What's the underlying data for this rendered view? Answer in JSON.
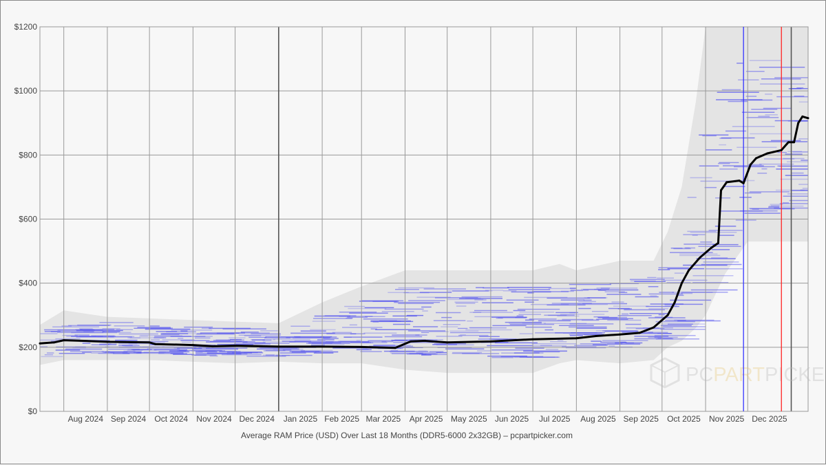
{
  "chart_data": {
    "type": "line",
    "title": "Average RAM Price (USD) Over Last 18 Months (DDR5-6000 2x32GB) – pcpartpicker.com",
    "xlabel": "",
    "ylabel": "",
    "xlim": [
      "2024-07-15",
      "2026-01-13"
    ],
    "ylim": [
      0,
      1200
    ],
    "grid": true,
    "legend": "none",
    "y_ticks": [
      {
        "value": 0,
        "label": "$0"
      },
      {
        "value": 200,
        "label": "$200"
      },
      {
        "value": 400,
        "label": "$400"
      },
      {
        "value": 600,
        "label": "$600"
      },
      {
        "value": 800,
        "label": "$800"
      },
      {
        "value": 1000,
        "label": "$1000"
      },
      {
        "value": 1200,
        "label": "$1200"
      }
    ],
    "x_ticks": [
      {
        "date": "2024-08-01",
        "label": "Aug 2024"
      },
      {
        "date": "2024-09-01",
        "label": "Sep 2024"
      },
      {
        "date": "2024-10-01",
        "label": "Oct 2024"
      },
      {
        "date": "2024-11-01",
        "label": "Nov 2024"
      },
      {
        "date": "2024-12-01",
        "label": "Dec 2024"
      },
      {
        "date": "2025-01-01",
        "label": "Jan 2025"
      },
      {
        "date": "2025-02-01",
        "label": "Feb 2025"
      },
      {
        "date": "2025-03-01",
        "label": "Mar 2025"
      },
      {
        "date": "2025-04-01",
        "label": "Apr 2025"
      },
      {
        "date": "2025-05-01",
        "label": "May 2025"
      },
      {
        "date": "2025-06-01",
        "label": "Jun 2025"
      },
      {
        "date": "2025-07-01",
        "label": "Jul 2025"
      },
      {
        "date": "2025-08-01",
        "label": "Aug 2025"
      },
      {
        "date": "2025-09-01",
        "label": "Sep 2025"
      },
      {
        "date": "2025-10-01",
        "label": "Oct 2025"
      },
      {
        "date": "2025-11-01",
        "label": "Nov 2025"
      },
      {
        "date": "2025-12-01",
        "label": "Dec 2025"
      },
      {
        "date": "2026-01-01",
        "label": ""
      }
    ],
    "year_markers": [
      "2025-01-01",
      "2026-01-01"
    ],
    "event_lines": [
      {
        "date": "2025-11-28",
        "color": "#3333ff"
      },
      {
        "date": "2025-12-25",
        "color": "#ff2222"
      }
    ],
    "series": [
      {
        "color": "#000000",
        "points": [
          [
            "2024-07-15",
            212
          ],
          [
            "2024-07-25",
            215
          ],
          [
            "2024-08-01",
            222
          ],
          [
            "2024-08-15",
            220
          ],
          [
            "2024-09-01",
            217
          ],
          [
            "2024-10-01",
            215
          ],
          [
            "2024-10-05",
            210
          ],
          [
            "2024-11-01",
            207
          ],
          [
            "2024-11-15",
            203
          ],
          [
            "2024-12-01",
            205
          ],
          [
            "2025-01-01",
            202
          ],
          [
            "2025-02-01",
            202
          ],
          [
            "2025-03-01",
            201
          ],
          [
            "2025-03-25",
            198
          ],
          [
            "2025-04-05",
            218
          ],
          [
            "2025-04-15",
            220
          ],
          [
            "2025-05-01",
            215
          ],
          [
            "2025-06-01",
            218
          ],
          [
            "2025-07-01",
            225
          ],
          [
            "2025-08-01",
            228
          ],
          [
            "2025-08-15",
            235
          ],
          [
            "2025-09-01",
            240
          ],
          [
            "2025-09-15",
            245
          ],
          [
            "2025-09-25",
            262
          ],
          [
            "2025-10-05",
            300
          ],
          [
            "2025-10-10",
            340
          ],
          [
            "2025-10-15",
            400
          ],
          [
            "2025-10-20",
            440
          ],
          [
            "2025-10-28",
            480
          ],
          [
            "2025-11-05",
            510
          ],
          [
            "2025-11-10",
            525
          ],
          [
            "2025-11-12",
            690
          ],
          [
            "2025-11-16",
            715
          ],
          [
            "2025-11-25",
            720
          ],
          [
            "2025-11-28",
            712
          ],
          [
            "2025-12-03",
            770
          ],
          [
            "2025-12-07",
            790
          ],
          [
            "2025-12-15",
            805
          ],
          [
            "2025-12-25",
            815
          ],
          [
            "2025-12-30",
            840
          ],
          [
            "2026-01-03",
            840
          ],
          [
            "2026-01-06",
            900
          ],
          [
            "2026-01-09",
            920
          ],
          [
            "2026-01-13",
            915
          ]
        ]
      }
    ],
    "price_range": {
      "color": "#e4e4e4",
      "points": [
        [
          "2024-07-15",
          145,
          270
        ],
        [
          "2024-08-01",
          160,
          315
        ],
        [
          "2024-09-01",
          160,
          295
        ],
        [
          "2024-10-01",
          160,
          290
        ],
        [
          "2024-12-01",
          150,
          280
        ],
        [
          "2025-01-01",
          155,
          275
        ],
        [
          "2025-02-01",
          150,
          340
        ],
        [
          "2025-03-01",
          150,
          390
        ],
        [
          "2025-04-01",
          130,
          440
        ],
        [
          "2025-05-01",
          120,
          440
        ],
        [
          "2025-07-01",
          120,
          440
        ],
        [
          "2025-07-20",
          150,
          460
        ],
        [
          "2025-08-01",
          160,
          440
        ],
        [
          "2025-09-01",
          150,
          470
        ],
        [
          "2025-09-25",
          160,
          470
        ],
        [
          "2025-10-05",
          200,
          560
        ],
        [
          "2025-10-15",
          220,
          700
        ],
        [
          "2025-10-25",
          260,
          965
        ],
        [
          "2025-11-01",
          300,
          1200
        ],
        [
          "2025-11-15",
          430,
          1200
        ],
        [
          "2025-12-01",
          530,
          1200
        ],
        [
          "2026-01-13",
          530,
          1200
        ]
      ]
    },
    "listing_color": "#5555ee"
  },
  "watermark": {
    "text_pc": "PC",
    "text_part": "PART",
    "text_picker": "PICKER"
  }
}
